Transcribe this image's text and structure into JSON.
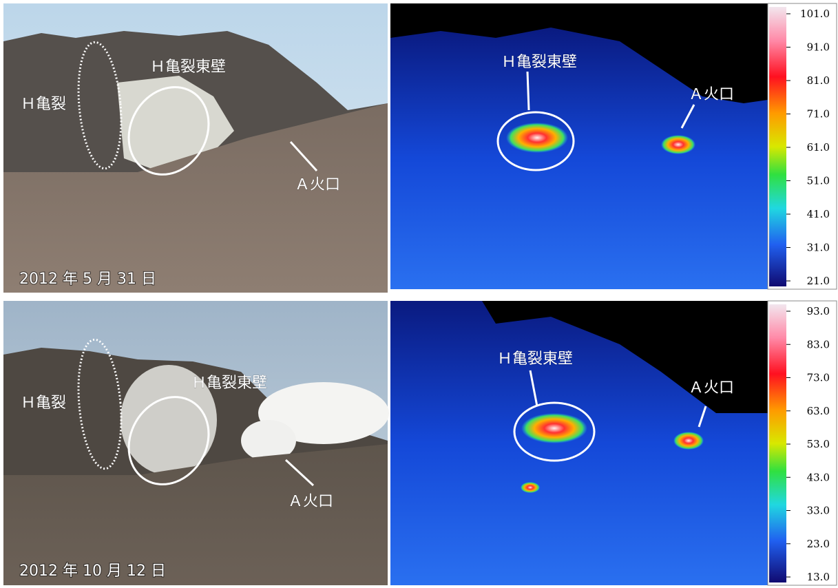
{
  "panels": [
    {
      "photo": {
        "crack": "Ｈ亀裂",
        "east_wall": "Ｈ亀裂東壁",
        "crater": "Ａ火口",
        "date": "2012 年 5 月 31 日"
      },
      "thermal": {
        "east_wall": "Ｈ亀裂東壁",
        "crater": "Ａ火口",
        "colorbar": [
          "101.0",
          "91.0",
          "81.0",
          "71.0",
          "61.0",
          "51.0",
          "41.0",
          "31.0",
          "21.0"
        ]
      }
    },
    {
      "photo": {
        "crack": "Ｈ亀裂",
        "east_wall": "Ｈ亀裂東壁",
        "crater": "Ａ火口",
        "date": "2012 年 10 月 12 日"
      },
      "thermal": {
        "east_wall": "Ｈ亀裂東壁",
        "crater": "Ａ火口",
        "colorbar": [
          "93.0",
          "83.0",
          "73.0",
          "63.0",
          "53.0",
          "43.0",
          "33.0",
          "23.0",
          "13.0"
        ]
      }
    }
  ]
}
